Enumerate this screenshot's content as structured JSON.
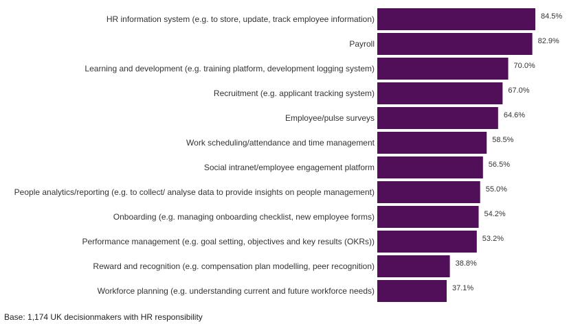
{
  "chart_data": {
    "type": "bar",
    "orientation": "horizontal",
    "categories": [
      "HR information system (e.g. to store, update, track employee information)",
      "Payroll",
      "Learning and development (e.g. training platform, development logging system)",
      "Recruitment (e.g. applicant tracking system)",
      "Employee/pulse surveys",
      "Work scheduling/attendance and time management",
      "Social intranet/employee engagement platform",
      "People analytics/reporting (e.g. to collect/ analyse data to provide insights on people management)",
      "Onboarding (e.g. managing onboarding checklist, new employee forms)",
      "Performance management (e.g. goal setting, objectives and key results (OKRs))",
      "Reward and recognition (e.g. compensation plan modelling, peer recognition)",
      "Workforce planning (e.g. understanding current and future workforce needs)"
    ],
    "values": [
      84.5,
      82.9,
      70.0,
      67.0,
      64.6,
      58.5,
      56.5,
      55.0,
      54.2,
      53.2,
      38.8,
      37.1
    ],
    "value_labels": [
      "84.5%",
      "82.9%",
      "70.0%",
      "67.0%",
      "64.6%",
      "58.5%",
      "56.5%",
      "55.0%",
      "54.2%",
      "53.2%",
      "38.8%",
      "37.1%"
    ],
    "unit": "%",
    "xlim": [
      0,
      100
    ],
    "grid": false,
    "bar_color": "#520f59",
    "title": "",
    "xlabel": "",
    "ylabel": ""
  },
  "footnote": "Base: 1,174 UK decisionmakers with HR responsibility"
}
